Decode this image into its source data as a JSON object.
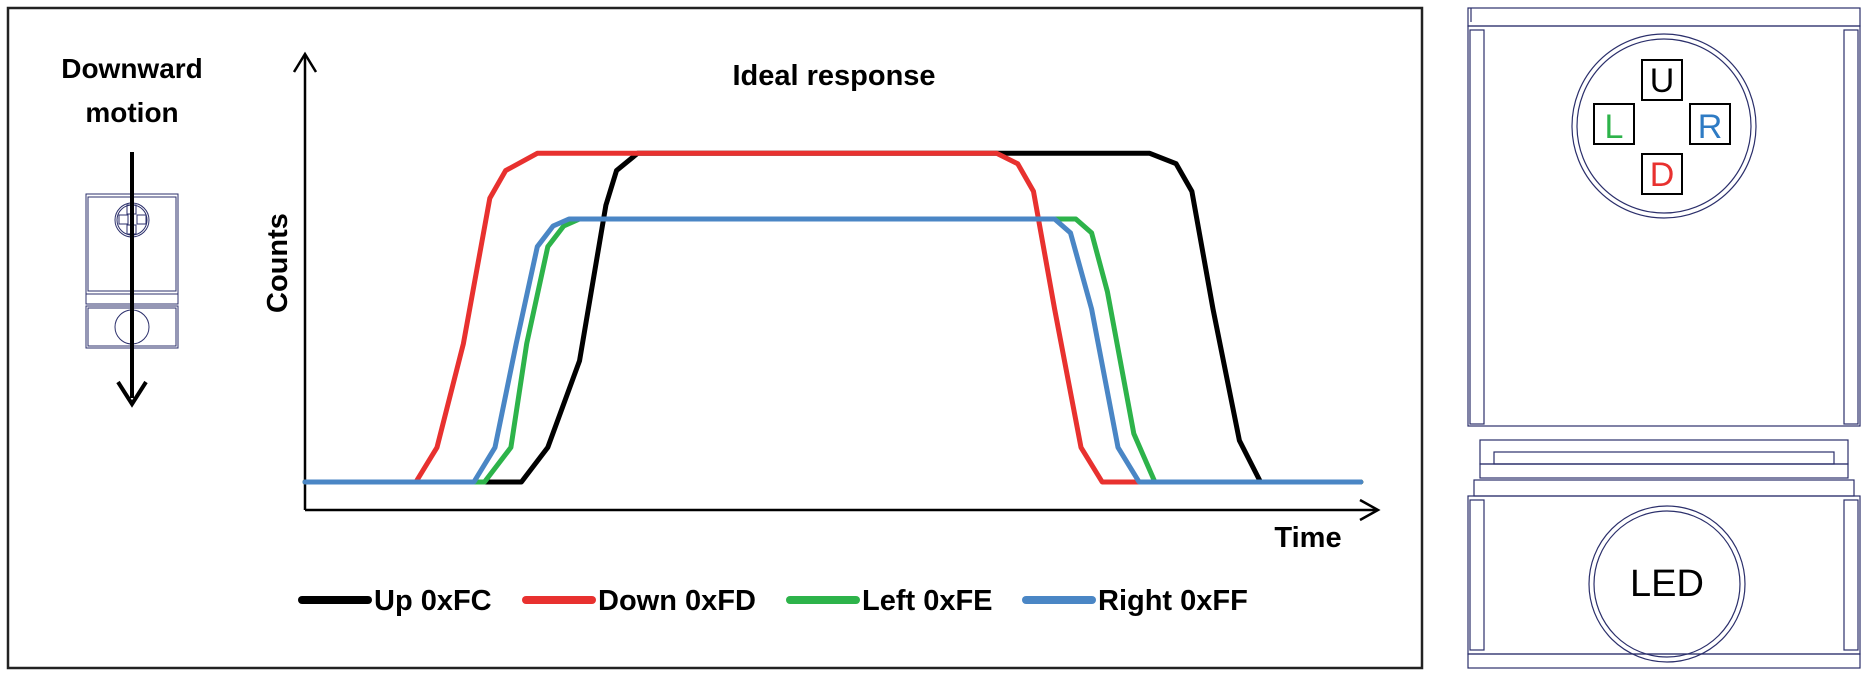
{
  "motion_label": {
    "line1": "Downward",
    "line2": "motion"
  },
  "chart_data": {
    "type": "line",
    "title": "Ideal response",
    "xlabel": "Time",
    "ylabel": "Counts",
    "grid": false,
    "legend_position": "bottom",
    "series": [
      {
        "name": "Up 0xFC",
        "color": "#000000",
        "points": [
          [
            0,
            0
          ],
          [
            2.05,
            0
          ],
          [
            2.3,
            0.1
          ],
          [
            2.6,
            0.35
          ],
          [
            2.85,
            0.8
          ],
          [
            2.95,
            0.9
          ],
          [
            3.15,
            0.95
          ],
          [
            8.0,
            0.95
          ],
          [
            8.25,
            0.92
          ],
          [
            8.4,
            0.84
          ],
          [
            8.6,
            0.5
          ],
          [
            8.85,
            0.12
          ],
          [
            9.05,
            0.0
          ],
          [
            10,
            0
          ]
        ]
      },
      {
        "name": "Down 0xFD",
        "color": "#e8312f",
        "points": [
          [
            0,
            0
          ],
          [
            1.05,
            0
          ],
          [
            1.25,
            0.1
          ],
          [
            1.5,
            0.4
          ],
          [
            1.75,
            0.82
          ],
          [
            1.9,
            0.9
          ],
          [
            2.2,
            0.95
          ],
          [
            6.55,
            0.95
          ],
          [
            6.75,
            0.92
          ],
          [
            6.9,
            0.84
          ],
          [
            7.1,
            0.5
          ],
          [
            7.35,
            0.1
          ],
          [
            7.55,
            0
          ],
          [
            10,
            0
          ]
        ]
      },
      {
        "name": "Left 0xFE",
        "color": "#2db34a",
        "points": [
          [
            0,
            0
          ],
          [
            1.7,
            0
          ],
          [
            1.95,
            0.1
          ],
          [
            2.1,
            0.4
          ],
          [
            2.3,
            0.68
          ],
          [
            2.45,
            0.74
          ],
          [
            2.6,
            0.76
          ],
          [
            7.3,
            0.76
          ],
          [
            7.45,
            0.72
          ],
          [
            7.6,
            0.55
          ],
          [
            7.85,
            0.14
          ],
          [
            8.05,
            0
          ],
          [
            10,
            0
          ]
        ]
      },
      {
        "name": "Right 0xFF",
        "color": "#4a86c5",
        "points": [
          [
            0,
            0
          ],
          [
            1.6,
            0
          ],
          [
            1.8,
            0.1
          ],
          [
            2.0,
            0.4
          ],
          [
            2.2,
            0.68
          ],
          [
            2.35,
            0.74
          ],
          [
            2.5,
            0.76
          ],
          [
            7.1,
            0.76
          ],
          [
            7.25,
            0.72
          ],
          [
            7.45,
            0.5
          ],
          [
            7.7,
            0.1
          ],
          [
            7.9,
            0
          ],
          [
            10,
            0
          ]
        ]
      }
    ],
    "xlim": [
      0,
      10
    ],
    "ylim": [
      0,
      1
    ]
  },
  "sensor": {
    "up_label": "U",
    "down_label": "D",
    "left_label": "L",
    "right_label": "R",
    "led_label": "LED",
    "colors": {
      "up": "#000000",
      "down": "#e8312f",
      "left": "#2db34a",
      "right": "#2e7bc4"
    }
  }
}
